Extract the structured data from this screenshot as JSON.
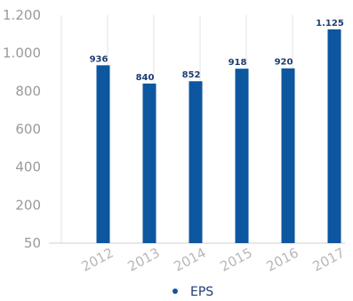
{
  "chart_data": {
    "type": "bar",
    "title": "",
    "xlabel": "",
    "ylabel": "",
    "categories": [
      "2012",
      "2013",
      "2014",
      "2015",
      "2016",
      "2017"
    ],
    "series": [
      {
        "name": "EPS",
        "values": [
          936,
          840,
          852,
          918,
          920,
          1125
        ],
        "value_labels": [
          "936",
          "840",
          "852",
          "918",
          "920",
          "1.125"
        ],
        "color": "#0d56a0"
      }
    ],
    "y_ticks": [
      50,
      200,
      400,
      600,
      800,
      1000,
      1200
    ],
    "y_tick_labels": [
      "50",
      "200",
      "400",
      "600",
      "800",
      "1.000",
      "1.200"
    ],
    "ylim": [
      50,
      1200
    ],
    "grid": true,
    "legend_position": "bottom-center",
    "colors": {
      "bar": "#0d56a0",
      "data_label": "#1e3d73",
      "tick_label": "#9a9a9a",
      "gridline": "#e3e3e3"
    }
  }
}
